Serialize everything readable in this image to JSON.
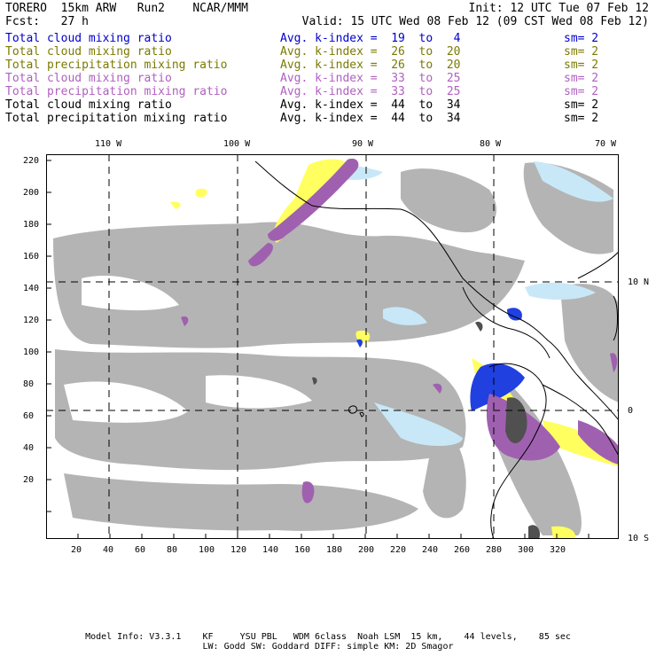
{
  "header": {
    "title_line": "TORERO  15km ARW   Run2    NCAR/MMM",
    "init": "Init: 12 UTC Tue 07 Feb 12",
    "fcst": "Fcst:   27 h",
    "valid": "Valid: 15 UTC Wed 08 Feb 12 (09 CST Wed 08 Feb 12)"
  },
  "legend_rows": [
    {
      "field": "Total cloud mixing ratio",
      "avg": "Avg. k-index =  19  to   4",
      "sm": "sm= 2",
      "color": "#0000cc"
    },
    {
      "field": "Total cloud mixing ratio",
      "avg": "Avg. k-index =  26  to  20",
      "sm": "sm= 2",
      "color": "#7a7a00"
    },
    {
      "field": "Total precipitation mixing ratio",
      "avg": "Avg. k-index =  26  to  20",
      "sm": "sm= 2",
      "color": "#7a7a00"
    },
    {
      "field": "Total cloud mixing ratio",
      "avg": "Avg. k-index =  33  to  25",
      "sm": "sm= 2",
      "color": "#b060c0"
    },
    {
      "field": "Total precipitation mixing ratio",
      "avg": "Avg. k-index =  33  to  25",
      "sm": "sm= 2",
      "color": "#b060c0"
    },
    {
      "field": "Total cloud mixing ratio",
      "avg": "Avg. k-index =  44  to  34",
      "sm": "sm= 2",
      "color": "#000000"
    },
    {
      "field": "Total precipitation mixing ratio",
      "avg": "Avg. k-index =  44  to  34",
      "sm": "sm= 2",
      "color": "#000000"
    }
  ],
  "map": {
    "top_labels": [
      "110 W",
      "100 W",
      "90 W",
      "80 W",
      "70 W"
    ],
    "right_labels": [
      "10 N",
      "0",
      "10 S"
    ],
    "y_ticks": [
      "220",
      "200",
      "180",
      "160",
      "140",
      "120",
      "100",
      "80",
      "60",
      "40",
      "20"
    ],
    "x_ticks": [
      "20",
      "40",
      "60",
      "80",
      "100",
      "120",
      "140",
      "160",
      "180",
      "200",
      "220",
      "240",
      "260",
      "280",
      "300",
      "320"
    ]
  },
  "footer": {
    "line1": "Model Info: V3.3.1    KF     YSU PBL   WDM 6class  Noah LSM  15 km,    44 levels,    85 sec",
    "line2": "LW: Godd SW: Goddard DIFF: simple KM: 2D Smagor"
  },
  "colors": {
    "gray_cloud": "#b4b4b4",
    "dark_cloud": "#505050",
    "light_blue": "#c8e8f8",
    "blue": "#2040e0",
    "yellow": "#ffff60",
    "purple": "#a060b0"
  }
}
